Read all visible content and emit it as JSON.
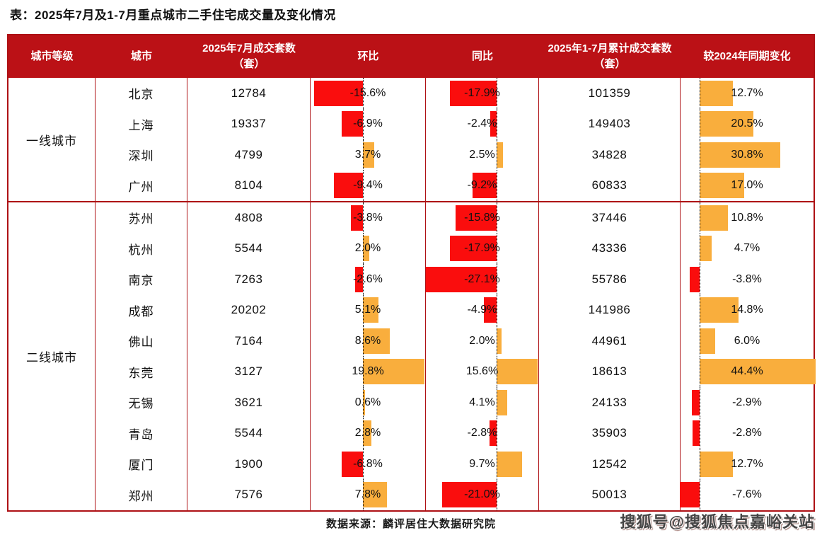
{
  "title": "表：2025年7月及1-7月重点城市二手住宅成交量及变化情况",
  "footer": {
    "source": "数据来源：麟评居住大数据研究院",
    "watermark": "搜狐号@搜狐焦点嘉峪关站"
  },
  "colors": {
    "header_bg": "#BB1116",
    "table_border": "#AE1115",
    "bar_negative": "#FA0D0D",
    "bar_positive": "#F9AE3D"
  },
  "chart_data": {
    "type": "table",
    "title": "表：2025年7月及1-7月重点城市二手住宅成交量及变化情况",
    "columns": [
      "城市等级",
      "城市",
      "2025年7月成交套数（套）",
      "环比",
      "同比",
      "2025年1-7月累计成交套数（套）",
      "较2024年同期变化"
    ],
    "bar_columns": [
      "环比",
      "同比",
      "较2024年同期变化"
    ],
    "bar_colors": {
      "positive": "#F9AE3D",
      "negative": "#FA0D0D"
    },
    "layout_hint": "negative bars extend left of dotted baseline in red; positive bars extend right in orange; percent labels centered in cell",
    "groups": [
      {
        "tier": "一线城市",
        "rows": [
          {
            "city": "北京",
            "jul_sales": 12784,
            "mom_pct": -15.6,
            "yoy_pct": -17.9,
            "cum_sales": 101359,
            "vs_2024_pct": 12.7
          },
          {
            "city": "上海",
            "jul_sales": 19337,
            "mom_pct": -6.9,
            "yoy_pct": -2.4,
            "cum_sales": 149403,
            "vs_2024_pct": 20.5
          },
          {
            "city": "深圳",
            "jul_sales": 4799,
            "mom_pct": 3.7,
            "yoy_pct": 2.5,
            "cum_sales": 34828,
            "vs_2024_pct": 30.8
          },
          {
            "city": "广州",
            "jul_sales": 8104,
            "mom_pct": -9.4,
            "yoy_pct": -9.2,
            "cum_sales": 60833,
            "vs_2024_pct": 17.0
          }
        ]
      },
      {
        "tier": "二线城市",
        "rows": [
          {
            "city": "苏州",
            "jul_sales": 4808,
            "mom_pct": -3.8,
            "yoy_pct": -15.8,
            "cum_sales": 37446,
            "vs_2024_pct": 10.8
          },
          {
            "city": "杭州",
            "jul_sales": 5544,
            "mom_pct": 2.0,
            "yoy_pct": -17.9,
            "cum_sales": 43336,
            "vs_2024_pct": 4.7
          },
          {
            "city": "南京",
            "jul_sales": 7263,
            "mom_pct": -2.6,
            "yoy_pct": -27.1,
            "cum_sales": 55786,
            "vs_2024_pct": -3.8
          },
          {
            "city": "成都",
            "jul_sales": 20202,
            "mom_pct": 5.1,
            "yoy_pct": -4.9,
            "cum_sales": 141986,
            "vs_2024_pct": 14.8
          },
          {
            "city": "佛山",
            "jul_sales": 7164,
            "mom_pct": 8.6,
            "yoy_pct": 2.0,
            "cum_sales": 44961,
            "vs_2024_pct": 6.0
          },
          {
            "city": "东莞",
            "jul_sales": 3127,
            "mom_pct": 19.8,
            "yoy_pct": 15.6,
            "cum_sales": 18613,
            "vs_2024_pct": 44.4
          },
          {
            "city": "无锡",
            "jul_sales": 3621,
            "mom_pct": 0.6,
            "yoy_pct": 4.1,
            "cum_sales": 24133,
            "vs_2024_pct": -2.9
          },
          {
            "city": "青岛",
            "jul_sales": 5544,
            "mom_pct": 2.8,
            "yoy_pct": -2.8,
            "cum_sales": 35903,
            "vs_2024_pct": -2.8
          },
          {
            "city": "厦门",
            "jul_sales": 1900,
            "mom_pct": -6.8,
            "yoy_pct": 9.7,
            "cum_sales": 12542,
            "vs_2024_pct": 12.7
          },
          {
            "city": "郑州",
            "jul_sales": 7576,
            "mom_pct": 7.8,
            "yoy_pct": -21.0,
            "cum_sales": 50013,
            "vs_2024_pct": -7.6
          }
        ]
      }
    ]
  }
}
